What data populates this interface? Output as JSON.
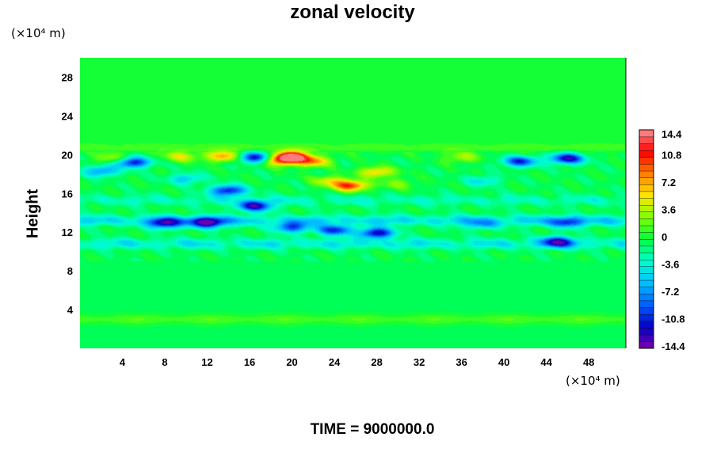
{
  "chart_data": {
    "type": "heatmap",
    "title": "zonal velocity",
    "xlabel": "",
    "ylabel": "Height",
    "x_unit": "(×10⁴ m)",
    "y_unit": "(×10⁴ m)",
    "xlim": [
      0,
      51.5
    ],
    "ylim": [
      0,
      30
    ],
    "x_ticks": [
      4,
      8,
      12,
      16,
      20,
      24,
      28,
      32,
      36,
      40,
      44,
      48
    ],
    "y_ticks": [
      4,
      8,
      12,
      16,
      20,
      24,
      28
    ],
    "colorbar": {
      "min": -14.4,
      "max": 14.4,
      "levels": 32,
      "labels": [
        14.4,
        10.8,
        7.2,
        3.6,
        0,
        -3.6,
        -7.2,
        -10.8,
        -14.4
      ],
      "colors": [
        "#7a00a8",
        "#0000c8",
        "#0060ff",
        "#00c0ff",
        "#00ffd0",
        "#00ff40",
        "#80ff00",
        "#ffe600",
        "#ff8000",
        "#ff0000",
        "#ff9090"
      ]
    },
    "background_value": 0.5,
    "features": [
      {
        "x": 20,
        "y": 19.8,
        "value": 14.4
      },
      {
        "x": 19,
        "y": 19.4,
        "value": 9
      },
      {
        "x": 22,
        "y": 19.3,
        "value": 8
      },
      {
        "x": 28,
        "y": 18.2,
        "value": 7
      },
      {
        "x": 25.5,
        "y": 16.8,
        "value": 11
      },
      {
        "x": 23.5,
        "y": 17.3,
        "value": 5
      },
      {
        "x": 13.5,
        "y": 19.8,
        "value": 8
      },
      {
        "x": 9.5,
        "y": 19.8,
        "value": 5
      },
      {
        "x": 3,
        "y": 19.6,
        "value": 4
      },
      {
        "x": 36,
        "y": 19.7,
        "value": 4
      },
      {
        "x": 30,
        "y": 17.0,
        "value": 3
      },
      {
        "x": 5,
        "y": 19.2,
        "value": -11
      },
      {
        "x": 16.5,
        "y": 19.7,
        "value": -11
      },
      {
        "x": 14,
        "y": 16.3,
        "value": -11
      },
      {
        "x": 16.5,
        "y": 14.7,
        "value": -12
      },
      {
        "x": 2,
        "y": 18.3,
        "value": -7
      },
      {
        "x": 10,
        "y": 17.5,
        "value": -5
      },
      {
        "x": 41.5,
        "y": 19.3,
        "value": -10
      },
      {
        "x": 46,
        "y": 19.6,
        "value": -12
      },
      {
        "x": 38,
        "y": 17.3,
        "value": -4
      },
      {
        "x": 12,
        "y": 13.0,
        "value": -13
      },
      {
        "x": 8,
        "y": 12.9,
        "value": -10
      },
      {
        "x": 20,
        "y": 12.5,
        "value": -9
      },
      {
        "x": 28,
        "y": 11.9,
        "value": -12
      },
      {
        "x": 24,
        "y": 12.2,
        "value": -10
      },
      {
        "x": 46,
        "y": 13.0,
        "value": -8
      },
      {
        "x": 45,
        "y": 11.0,
        "value": -10
      },
      {
        "x": 38,
        "y": 12.8,
        "value": -5
      }
    ],
    "bands": [
      {
        "y": 20.6,
        "value": 1.2
      },
      {
        "y": 13.2,
        "value": -4.8
      },
      {
        "y": 10.8,
        "value": -4.0
      },
      {
        "y": 15.3,
        "value": -2.5
      },
      {
        "y": 3.0,
        "value": 2.2
      }
    ]
  },
  "footer": {
    "time_label": "TIME = 9000000.0"
  }
}
